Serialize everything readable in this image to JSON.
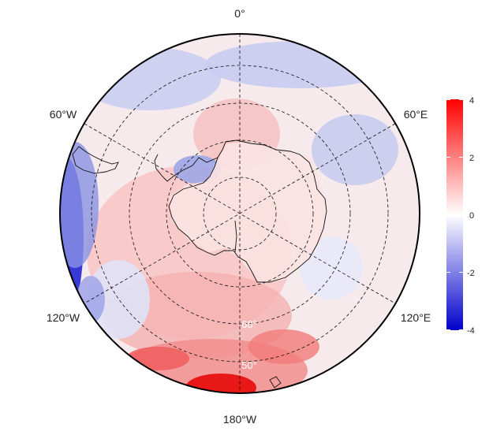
{
  "map": {
    "projection": "south-polar-stereographic",
    "longitude_labels": {
      "top": "0°",
      "upper_left": "60°W",
      "upper_right": "60°E",
      "lower_left": "120°W",
      "lower_right": "120°E",
      "bottom": "180°W"
    },
    "latitude_labels": [
      "60°",
      "50°"
    ],
    "colorbar": {
      "min": -4,
      "max": 4,
      "ticks": [
        "4",
        "2",
        "0",
        "-2",
        "-4"
      ],
      "colors": {
        "low": "#0000cc",
        "mid": "#ffffff",
        "high": "#ff0000"
      }
    }
  }
}
